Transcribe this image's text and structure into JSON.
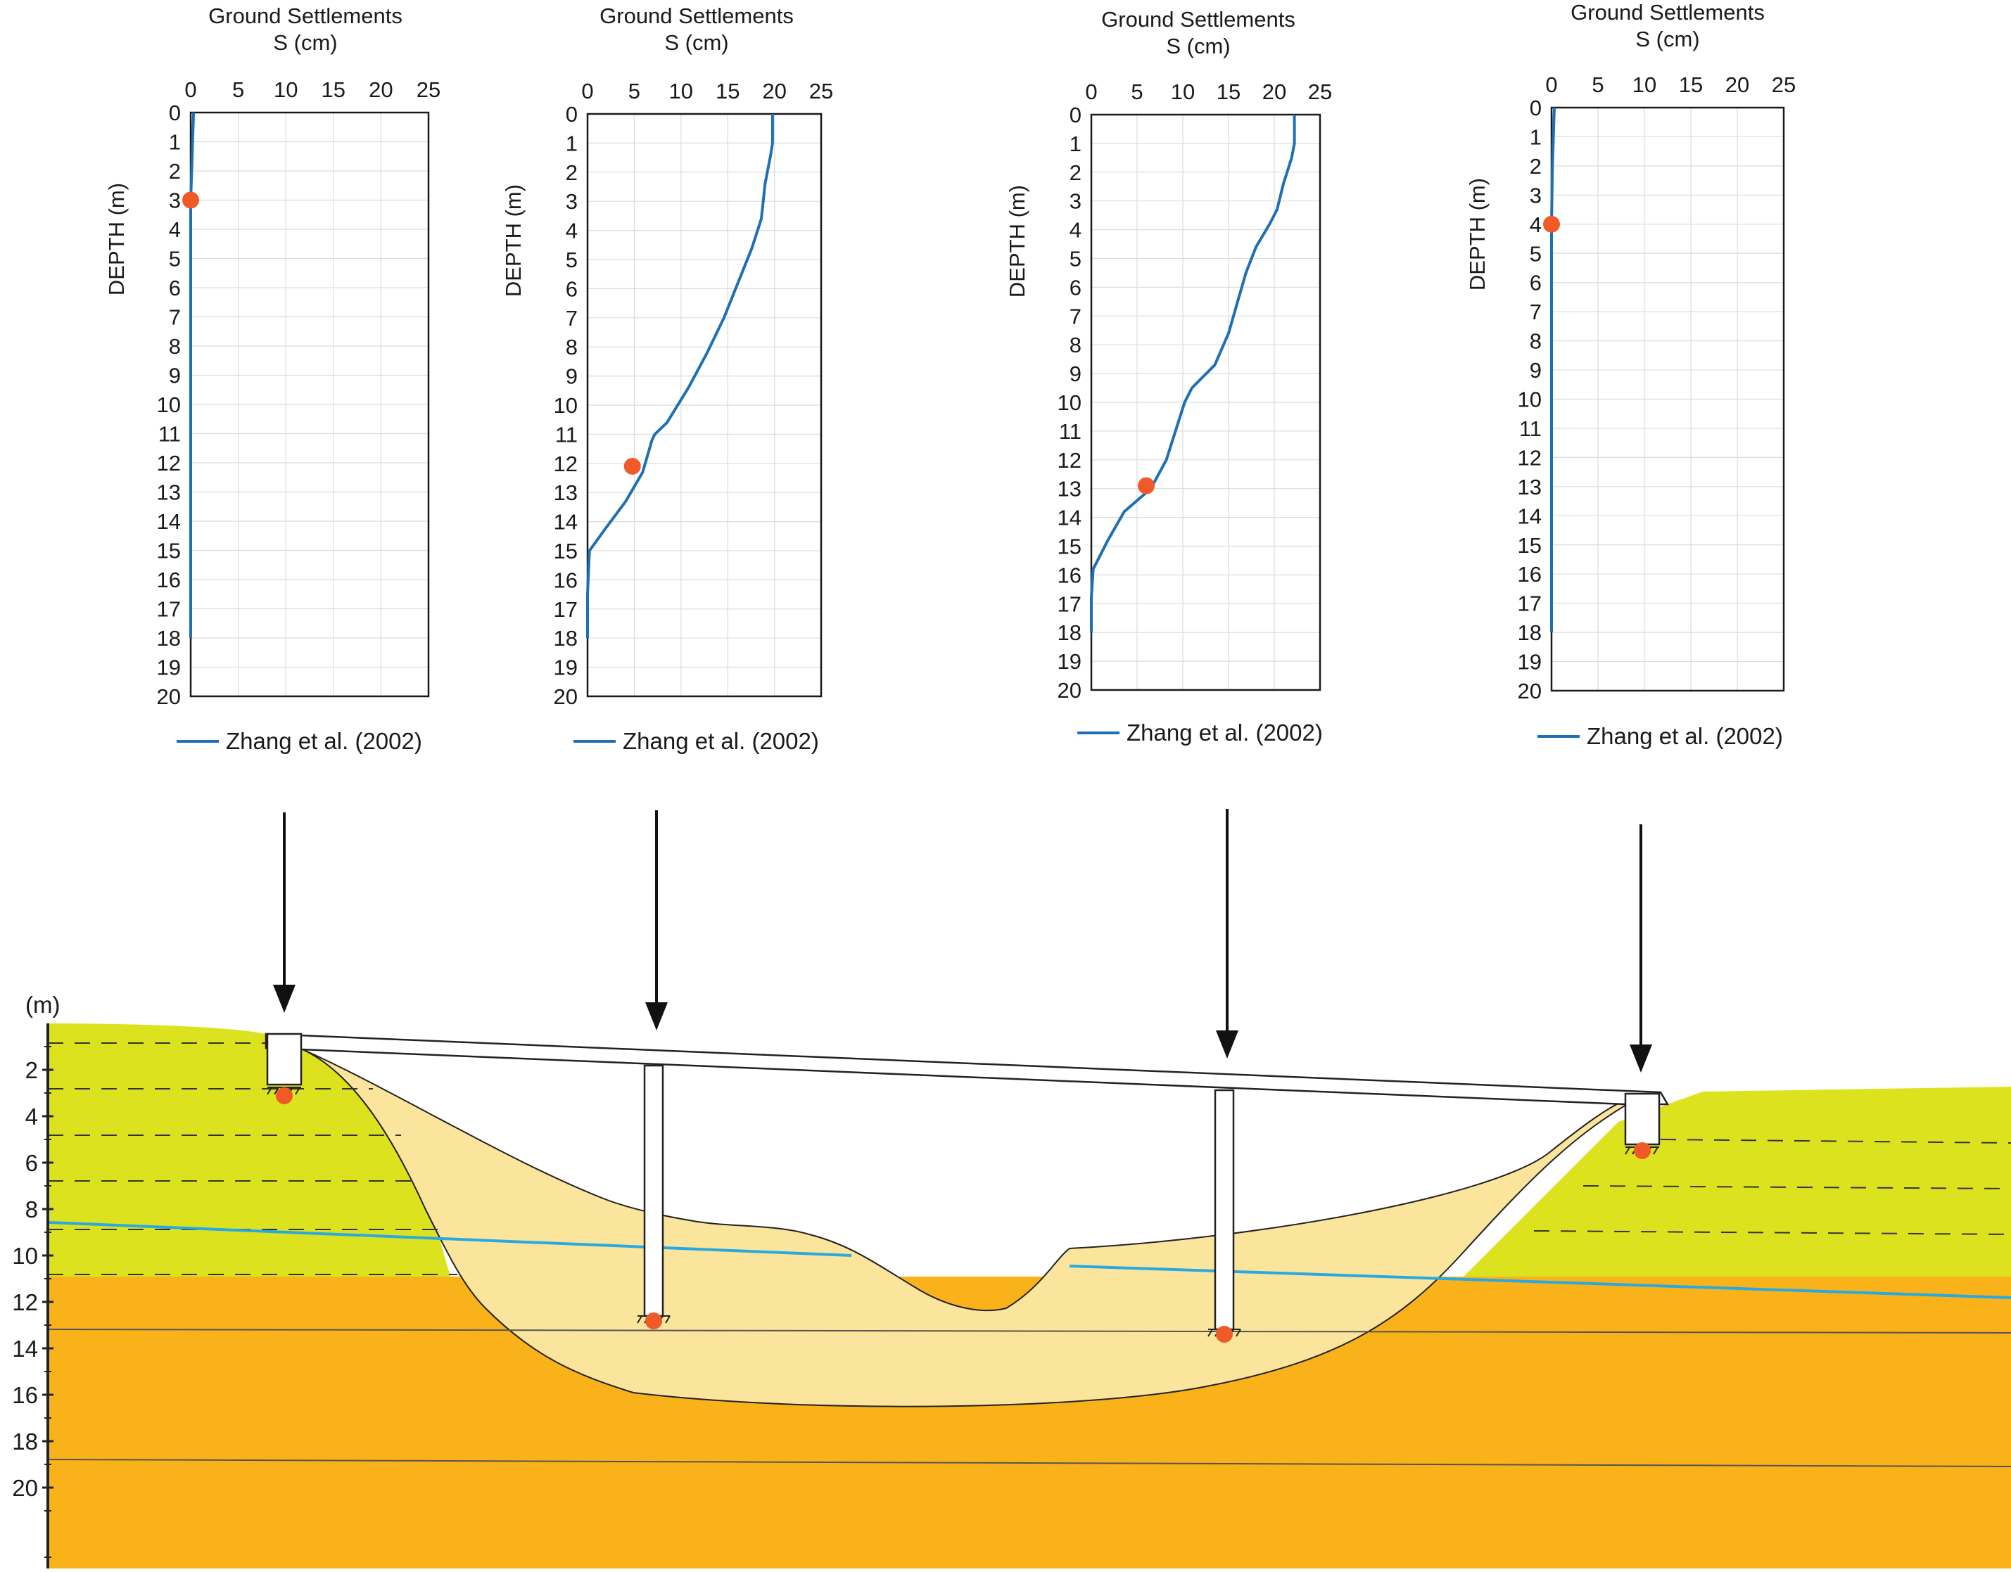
{
  "colors": {
    "series_line": "#1f6fb4",
    "marker": "#f05a28",
    "grid": "#dcdcdc",
    "fill_yellow": "#dde21f",
    "fill_orange": "#f9b219",
    "fill_backfill": "#fbe49c",
    "water_table": "#29a9e1"
  },
  "chart_data": [
    {
      "type": "line",
      "title": "Ground Settlements",
      "subtitle": "S (cm)",
      "xlabel": "S (cm)",
      "ylabel": "DEPTH (m)",
      "xlim": [
        0,
        25
      ],
      "ylim": [
        0,
        20
      ],
      "y_inverted": true,
      "grid": true,
      "x_ticks": [
        "0",
        "5",
        "10",
        "15",
        "20",
        "25"
      ],
      "y_ticks": [
        "0",
        "1",
        "2",
        "3",
        "4",
        "5",
        "6",
        "7",
        "8",
        "9",
        "10",
        "11",
        "12",
        "13",
        "14",
        "15",
        "16",
        "17",
        "18",
        "19",
        "20"
      ],
      "series": [
        {
          "name": "Zhang et al. (2002)",
          "x": [
            0.3,
            0.2,
            0.1,
            0,
            0,
            0
          ],
          "y": [
            0,
            1,
            2,
            3,
            10,
            18
          ]
        }
      ],
      "marker_point": {
        "x": 0,
        "y": 3
      },
      "legend": "Zhang et al. (2002)",
      "legend_position": "bottom"
    },
    {
      "type": "line",
      "title": "Ground Settlements",
      "subtitle": "S (cm)",
      "xlabel": "S (cm)",
      "ylabel": "DEPTH (m)",
      "xlim": [
        0,
        25
      ],
      "ylim": [
        0,
        20
      ],
      "y_inverted": true,
      "grid": true,
      "x_ticks": [
        "0",
        "5",
        "10",
        "15",
        "20",
        "25"
      ],
      "y_ticks": [
        "0",
        "1",
        "2",
        "3",
        "4",
        "5",
        "6",
        "7",
        "8",
        "9",
        "10",
        "11",
        "12",
        "13",
        "14",
        "15",
        "16",
        "17",
        "18",
        "19",
        "20"
      ],
      "series": [
        {
          "name": "Zhang et al. (2002)",
          "x": [
            19.8,
            19.8,
            19.6,
            19.0,
            18.6,
            17.6,
            16.1,
            14.6,
            12.8,
            10.8,
            8.5,
            7.2,
            6.9,
            5.9,
            4.1,
            2.0,
            0.2,
            0,
            0
          ],
          "y": [
            0,
            1,
            1.4,
            2.4,
            3.6,
            4.6,
            5.8,
            7.0,
            8.2,
            9.4,
            10.6,
            11.0,
            11.2,
            12.3,
            13.3,
            14.2,
            15.0,
            16.5,
            18
          ]
        }
      ],
      "marker_point": {
        "x": 4.8,
        "y": 12.1
      },
      "legend": "Zhang et al. (2002)",
      "legend_position": "bottom"
    },
    {
      "type": "line",
      "title": "Ground Settlements",
      "subtitle": "S (cm)",
      "xlabel": "S (cm)",
      "ylabel": "DEPTH (m)",
      "xlim": [
        0,
        25
      ],
      "ylim": [
        0,
        20
      ],
      "y_inverted": true,
      "grid": true,
      "x_ticks": [
        "0",
        "5",
        "10",
        "15",
        "20",
        "25"
      ],
      "y_ticks": [
        "0",
        "1",
        "2",
        "3",
        "4",
        "5",
        "6",
        "7",
        "8",
        "9",
        "10",
        "11",
        "12",
        "13",
        "14",
        "15",
        "16",
        "17",
        "18",
        "19",
        "20"
      ],
      "series": [
        {
          "name": "Zhang et al. (2002)",
          "x": [
            22.2,
            22.2,
            21.9,
            21.0,
            20.3,
            19.5,
            18.0,
            16.9,
            15.9,
            15.0,
            13.5,
            11.0,
            10.2,
            9.6,
            8.2,
            6.5,
            3.6,
            1.8,
            0.2,
            0,
            0
          ],
          "y": [
            0,
            1,
            1.5,
            2.4,
            3.3,
            3.8,
            4.6,
            5.5,
            6.6,
            7.6,
            8.7,
            9.5,
            10.0,
            10.6,
            12.0,
            13.0,
            13.8,
            14.8,
            15.8,
            16.8,
            18
          ]
        }
      ],
      "marker_point": {
        "x": 6.0,
        "y": 12.9
      },
      "legend": "Zhang et al. (2002)",
      "legend_position": "bottom"
    },
    {
      "type": "line",
      "title": "Ground Settlements",
      "subtitle": "S (cm)",
      "xlabel": "S (cm)",
      "ylabel": "DEPTH (m)",
      "xlim": [
        0,
        25
      ],
      "ylim": [
        0,
        20
      ],
      "y_inverted": true,
      "grid": true,
      "x_ticks": [
        "0",
        "5",
        "10",
        "15",
        "20",
        "25"
      ],
      "y_ticks": [
        "0",
        "1",
        "2",
        "3",
        "4",
        "5",
        "6",
        "7",
        "8",
        "9",
        "10",
        "11",
        "12",
        "13",
        "14",
        "15",
        "16",
        "17",
        "18",
        "19",
        "20"
      ],
      "series": [
        {
          "name": "Zhang et al. (2002)",
          "x": [
            0.3,
            0.2,
            0.1,
            0,
            0,
            0
          ],
          "y": [
            0,
            1,
            2,
            4,
            10,
            18
          ]
        }
      ],
      "marker_point": {
        "x": 0,
        "y": 4
      },
      "legend": "Zhang et al. (2002)",
      "legend_position": "bottom"
    }
  ],
  "cross_section": {
    "unit_label": "(m)",
    "depth_ticks": [
      "2",
      "4",
      "6",
      "8",
      "10",
      "12",
      "14",
      "16",
      "18",
      "20"
    ]
  }
}
